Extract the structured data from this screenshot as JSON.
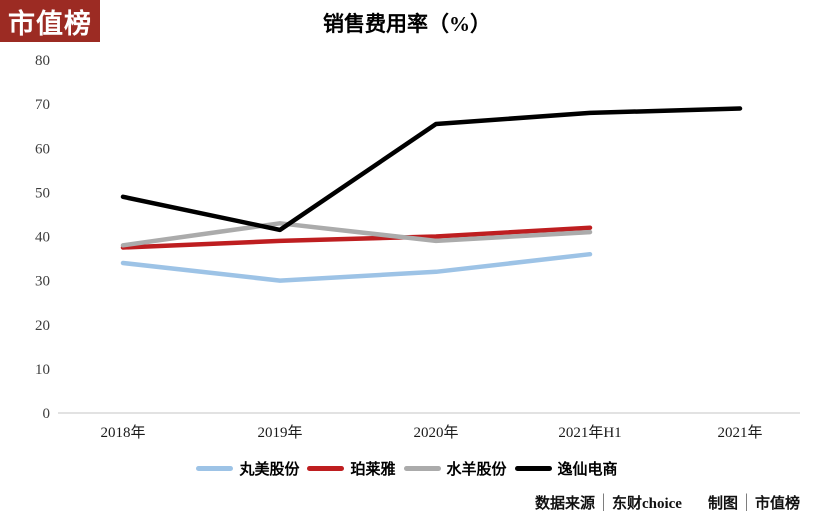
{
  "badge": {
    "text": "市值榜",
    "bg_color": "#9C2B23",
    "text_color": "#FFFFFF"
  },
  "title": "销售费用率（%）",
  "chart_data": {
    "type": "line",
    "title": "销售费用率（%）",
    "categories": [
      "2018年",
      "2019年",
      "2020年",
      "2021年H1",
      "2021年"
    ],
    "series": [
      {
        "name": "丸美股份",
        "color": "#9DC3E6",
        "values": [
          34,
          30,
          32,
          36,
          null
        ]
      },
      {
        "name": "珀莱雅",
        "color": "#BE1E20",
        "values": [
          37.5,
          39,
          40,
          42,
          null
        ]
      },
      {
        "name": "水羊股份",
        "color": "#ABABAB",
        "values": [
          38,
          43,
          39,
          41,
          null
        ]
      },
      {
        "name": "逸仙电商",
        "color": "#000000",
        "values": [
          49,
          41.5,
          65.5,
          68,
          69
        ]
      }
    ],
    "xlabel": "",
    "ylabel": "",
    "ylim": [
      0,
      80
    ],
    "yticks": [
      0,
      10,
      20,
      30,
      40,
      50,
      60,
      70,
      80
    ],
    "grid": false,
    "legend_position": "bottom",
    "axis_color": "#D9D9D9"
  },
  "footer": {
    "source_label": "数据来源",
    "separator": "|",
    "source_value": "东财choice",
    "chart_by_label": "制图",
    "chart_by_value": "市值榜"
  }
}
